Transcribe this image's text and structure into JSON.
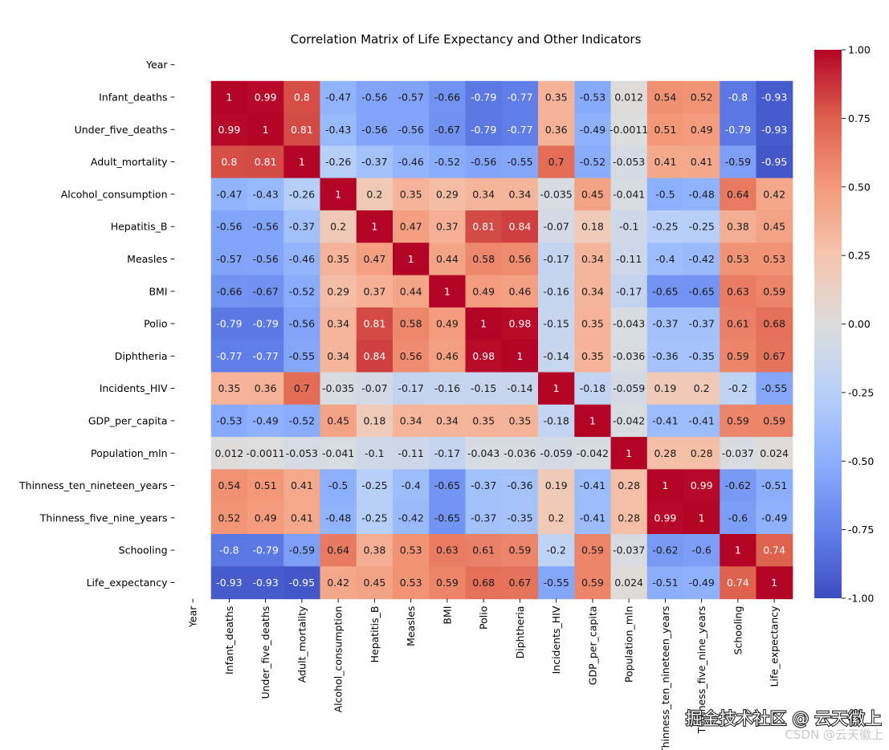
{
  "chart_data": {
    "type": "heatmap",
    "title": "Correlation Matrix of Life Expectancy and Other Indicators",
    "labels": [
      "Year",
      "Infant_deaths",
      "Under_five_deaths",
      "Adult_mortality",
      "Alcohol_consumption",
      "Hepatitis_B",
      "Measles",
      "BMI",
      "Polio",
      "Diphtheria",
      "Incidents_HIV",
      "GDP_per_capita",
      "Population_mln",
      "Thinness_ten_nineteen_years",
      "Thinness_five_nine_years",
      "Schooling",
      "Life_expectancy"
    ],
    "matrix": [
      [
        null,
        null,
        null,
        null,
        null,
        null,
        null,
        null,
        null,
        null,
        null,
        null,
        null,
        null,
        null,
        null,
        null
      ],
      [
        null,
        1,
        0.99,
        0.8,
        -0.47,
        -0.56,
        -0.57,
        -0.66,
        -0.79,
        -0.77,
        0.35,
        -0.53,
        0.012,
        0.54,
        0.52,
        -0.8,
        -0.93
      ],
      [
        null,
        0.99,
        1,
        0.81,
        -0.43,
        -0.56,
        -0.56,
        -0.67,
        -0.79,
        -0.77,
        0.36,
        -0.49,
        -0.0011,
        0.51,
        0.49,
        -0.79,
        -0.93
      ],
      [
        null,
        0.8,
        0.81,
        1,
        -0.26,
        -0.37,
        -0.46,
        -0.52,
        -0.56,
        -0.55,
        0.7,
        -0.52,
        -0.053,
        0.41,
        0.41,
        -0.59,
        -0.95
      ],
      [
        null,
        -0.47,
        -0.43,
        -0.26,
        1,
        0.2,
        0.35,
        0.29,
        0.34,
        0.34,
        -0.035,
        0.45,
        -0.041,
        -0.5,
        -0.48,
        0.64,
        0.42
      ],
      [
        null,
        -0.56,
        -0.56,
        -0.37,
        0.2,
        1,
        0.47,
        0.37,
        0.81,
        0.84,
        -0.07,
        0.18,
        -0.1,
        -0.25,
        -0.25,
        0.38,
        0.45
      ],
      [
        null,
        -0.57,
        -0.56,
        -0.46,
        0.35,
        0.47,
        1,
        0.44,
        0.58,
        0.56,
        -0.17,
        0.34,
        -0.11,
        -0.4,
        -0.42,
        0.53,
        0.53
      ],
      [
        null,
        -0.66,
        -0.67,
        -0.52,
        0.29,
        0.37,
        0.44,
        1,
        0.49,
        0.46,
        -0.16,
        0.34,
        -0.17,
        -0.65,
        -0.65,
        0.63,
        0.59
      ],
      [
        null,
        -0.79,
        -0.79,
        -0.56,
        0.34,
        0.81,
        0.58,
        0.49,
        1,
        0.98,
        -0.15,
        0.35,
        -0.043,
        -0.37,
        -0.37,
        0.61,
        0.68
      ],
      [
        null,
        -0.77,
        -0.77,
        -0.55,
        0.34,
        0.84,
        0.56,
        0.46,
        0.98,
        1,
        -0.14,
        0.35,
        -0.036,
        -0.36,
        -0.35,
        0.59,
        0.67
      ],
      [
        null,
        0.35,
        0.36,
        0.7,
        -0.035,
        -0.07,
        -0.17,
        -0.16,
        -0.15,
        -0.14,
        1,
        -0.18,
        -0.059,
        0.19,
        0.2,
        -0.2,
        -0.55
      ],
      [
        null,
        -0.53,
        -0.49,
        -0.52,
        0.45,
        0.18,
        0.34,
        0.34,
        0.35,
        0.35,
        -0.18,
        1,
        -0.042,
        -0.41,
        -0.41,
        0.59,
        0.59
      ],
      [
        null,
        0.012,
        -0.0011,
        -0.053,
        -0.041,
        -0.1,
        -0.11,
        -0.17,
        -0.043,
        -0.036,
        -0.059,
        -0.042,
        1,
        0.28,
        0.28,
        -0.037,
        0.024
      ],
      [
        null,
        0.54,
        0.51,
        0.41,
        -0.5,
        -0.25,
        -0.4,
        -0.65,
        -0.37,
        -0.36,
        0.19,
        -0.41,
        0.28,
        1,
        0.99,
        -0.62,
        -0.51
      ],
      [
        null,
        0.52,
        0.49,
        0.41,
        -0.48,
        -0.25,
        -0.42,
        -0.65,
        -0.37,
        -0.35,
        0.2,
        -0.41,
        0.28,
        0.99,
        1,
        -0.6,
        -0.49
      ],
      [
        null,
        -0.8,
        -0.79,
        -0.59,
        0.64,
        0.38,
        0.53,
        0.63,
        0.61,
        0.59,
        -0.2,
        0.59,
        -0.037,
        -0.62,
        -0.6,
        1,
        0.74
      ],
      [
        null,
        -0.93,
        -0.93,
        -0.95,
        0.42,
        0.45,
        0.53,
        0.59,
        0.68,
        0.67,
        -0.55,
        0.59,
        0.024,
        -0.51,
        -0.49,
        0.74,
        1
      ]
    ],
    "colormap": "coolwarm",
    "vmin": -1,
    "vmax": 1,
    "colorbar_ticks": [
      "1.00",
      "0.75",
      "0.50",
      "0.25",
      "0.00",
      "-0.25",
      "-0.50",
      "-0.75",
      "-1.00"
    ],
    "colorbar_tick_values": [
      1,
      0.75,
      0.5,
      0.25,
      0,
      -0.25,
      -0.5,
      -0.75,
      -1
    ],
    "annotated": true,
    "grid": false
  },
  "watermark": {
    "primary": "掘金技术社区 @ 云天徽上",
    "secondary": "CSDN @云天徽上"
  }
}
